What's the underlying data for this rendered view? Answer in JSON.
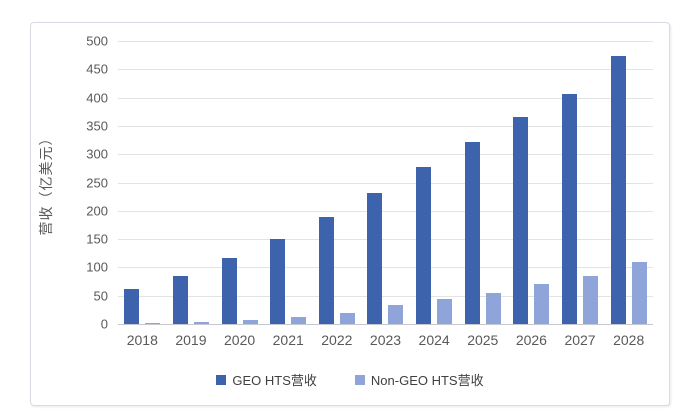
{
  "chart_data": {
    "type": "bar",
    "title": "",
    "ylabel": "营收（亿美元）",
    "xlabel": "",
    "categories": [
      "2018",
      "2019",
      "2020",
      "2021",
      "2022",
      "2023",
      "2024",
      "2025",
      "2026",
      "2027",
      "2028"
    ],
    "series": [
      {
        "name": "GEO HTS营收",
        "color": "#3e63ad",
        "values": [
          62,
          85,
          116,
          150,
          189,
          232,
          278,
          321,
          365,
          406,
          474
        ]
      },
      {
        "name": "Non-GEO HTS营收",
        "color": "#8fa4d9",
        "values": [
          2,
          3,
          7,
          13,
          19,
          33,
          44,
          55,
          70,
          84,
          110
        ]
      }
    ],
    "ylim": [
      0,
      500
    ],
    "ytick_step": 50,
    "grid": true,
    "legend_position": "bottom"
  },
  "colors": {
    "gridline": "#e3e3e3",
    "axis_line": "#c5c9cf",
    "tick_text": "#595959",
    "frame_border": "#d8dce2",
    "background": "#ffffff"
  }
}
